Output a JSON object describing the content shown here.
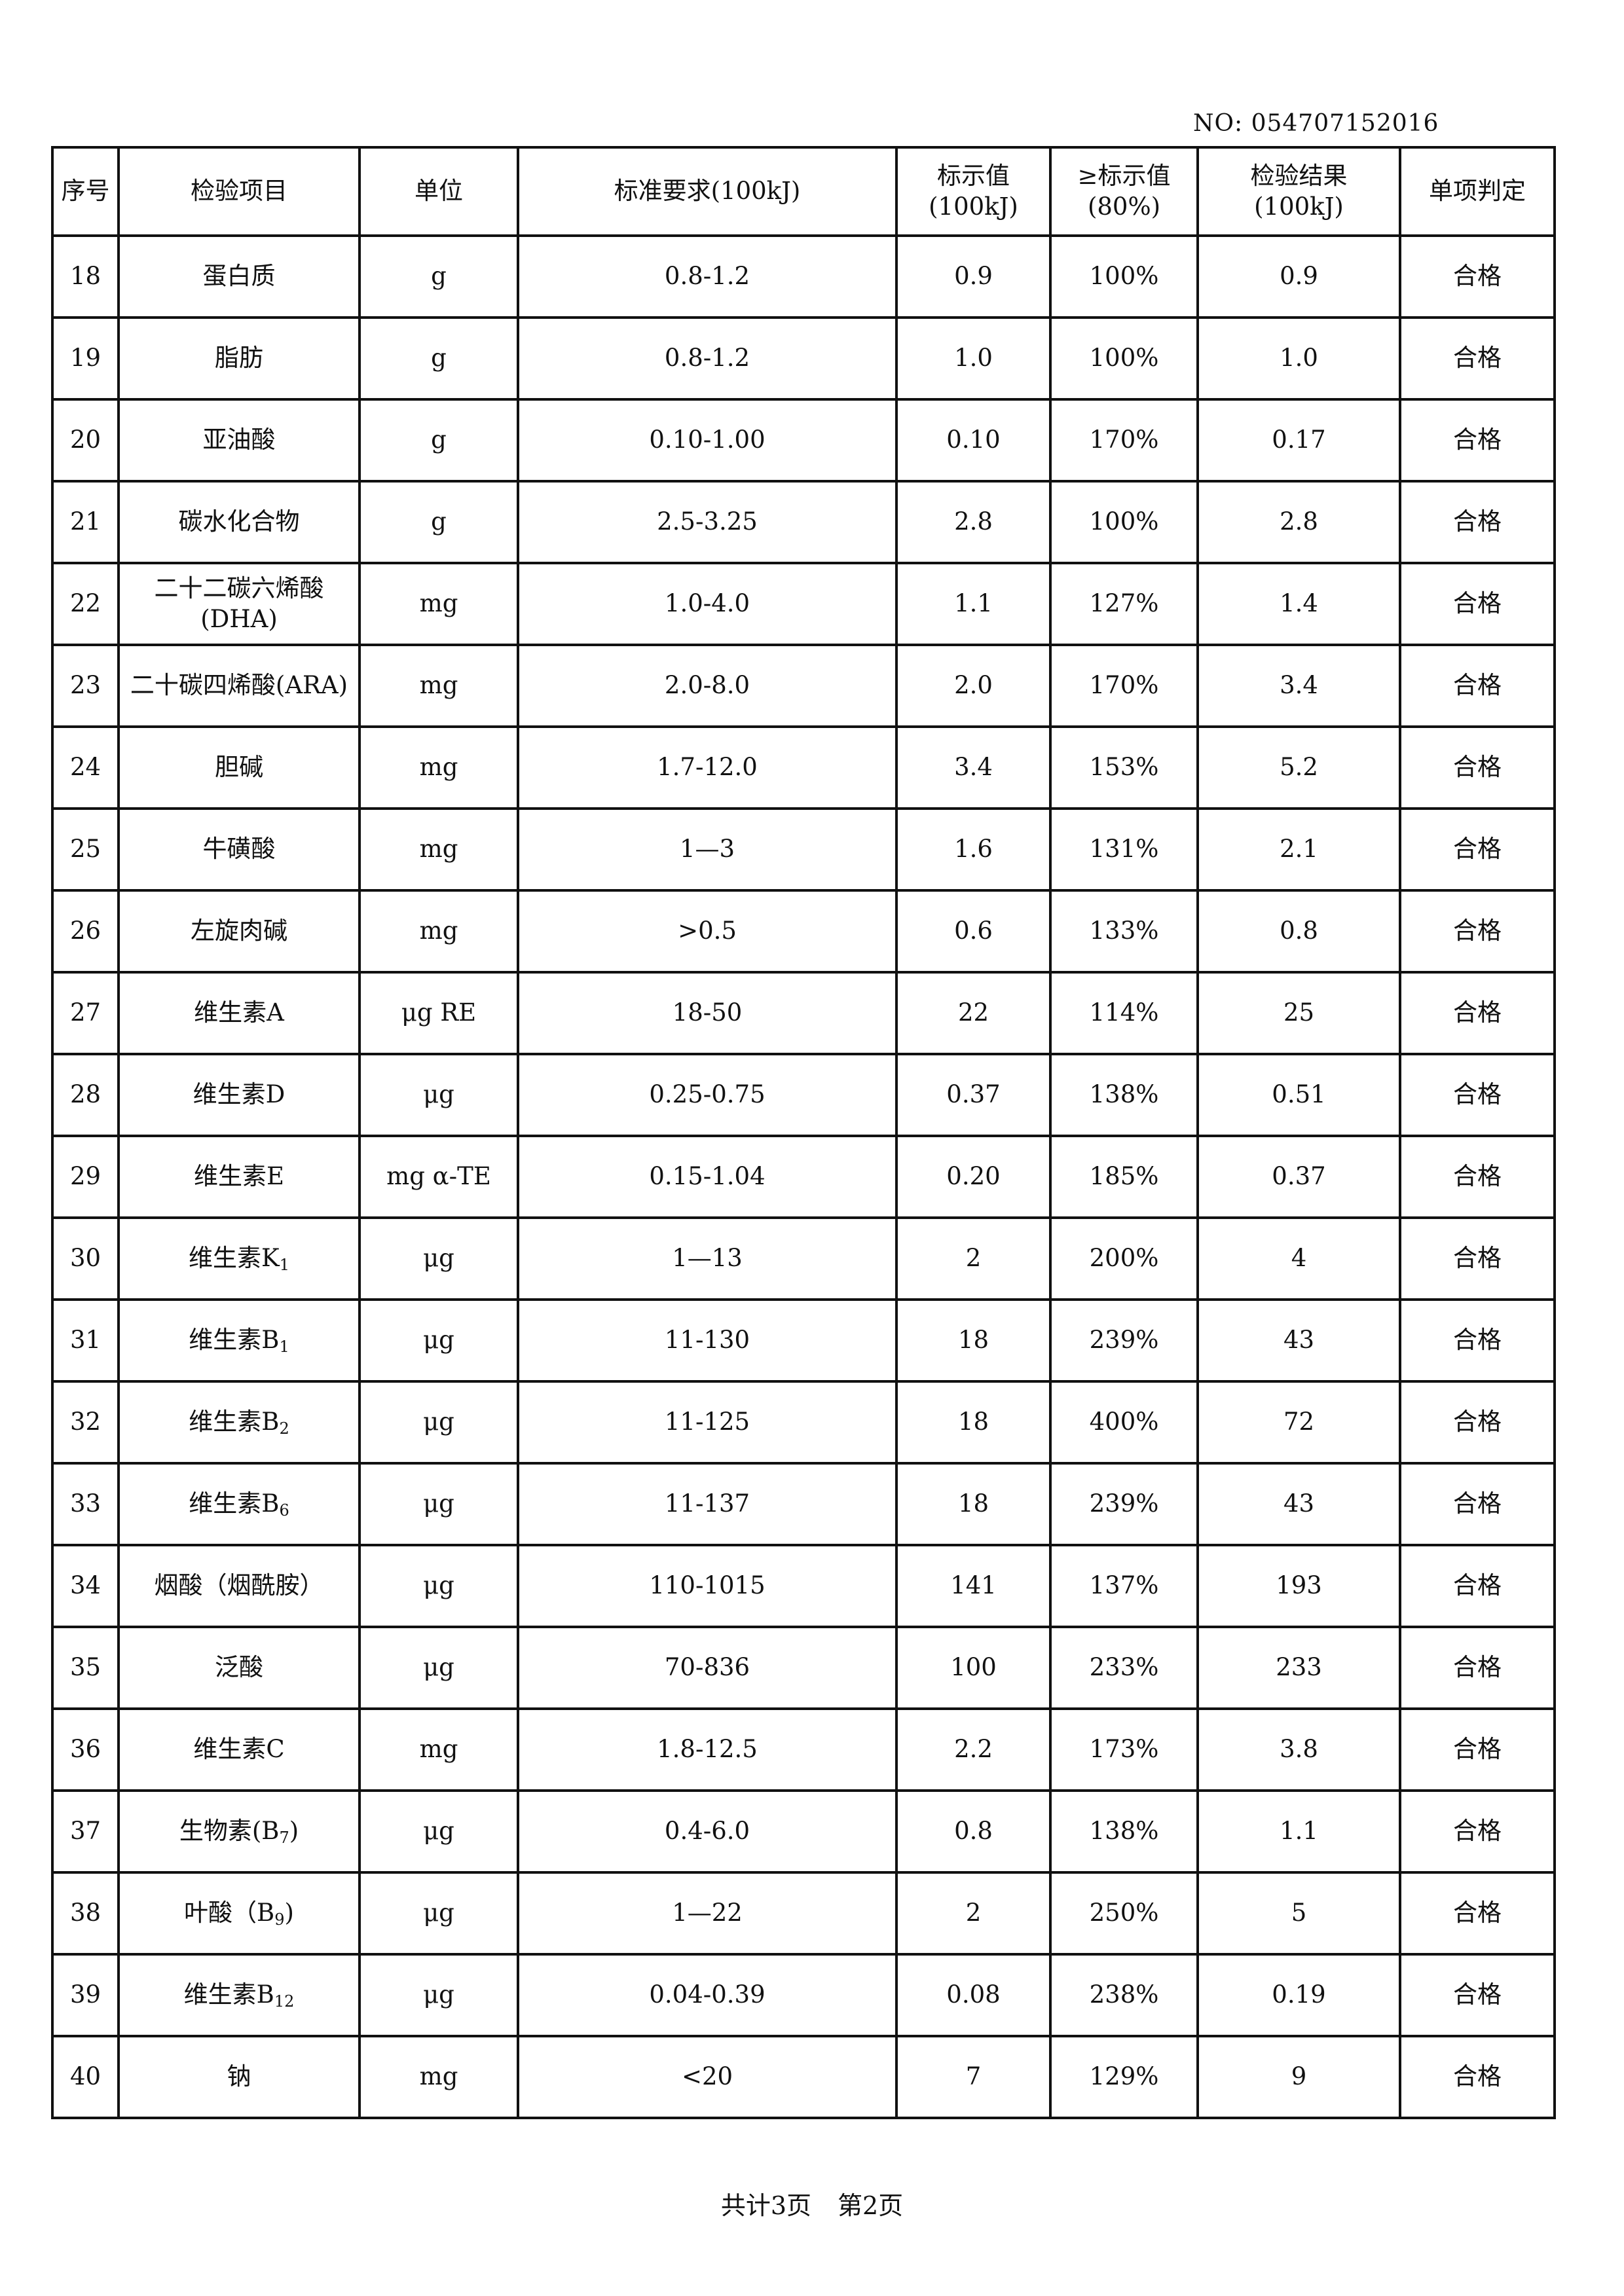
{
  "document_number": "NO: 054707152016",
  "table": {
    "headers": [
      {
        "line1": "序号",
        "line2": ""
      },
      {
        "line1": "检验项目",
        "line2": ""
      },
      {
        "line1": "单位",
        "line2": ""
      },
      {
        "line1": "标准要求(100kJ)",
        "line2": ""
      },
      {
        "line1": "标示值",
        "line2": "(100kJ)"
      },
      {
        "line1": "≥标示值",
        "line2": "(80%)"
      },
      {
        "line1": "检验结果",
        "line2": "(100kJ)"
      },
      {
        "line1": "单项判定",
        "line2": ""
      }
    ],
    "rows": [
      {
        "no": "18",
        "item": "蛋白质",
        "sub": "",
        "suffix": "",
        "unit": "g",
        "standard": "0.8-1.2",
        "label": "0.9",
        "pct": "100%",
        "result": "0.9",
        "verdict": "合格"
      },
      {
        "no": "19",
        "item": "脂肪",
        "sub": "",
        "suffix": "",
        "unit": "g",
        "standard": "0.8-1.2",
        "label": "1.0",
        "pct": "100%",
        "result": "1.0",
        "verdict": "合格"
      },
      {
        "no": "20",
        "item": "亚油酸",
        "sub": "",
        "suffix": "",
        "unit": "g",
        "standard": "0.10-1.00",
        "label": "0.10",
        "pct": "170%",
        "result": "0.17",
        "verdict": "合格"
      },
      {
        "no": "21",
        "item": "碳水化合物",
        "sub": "",
        "suffix": "",
        "unit": "g",
        "standard": "2.5-3.25",
        "label": "2.8",
        "pct": "100%",
        "result": "2.8",
        "verdict": "合格"
      },
      {
        "no": "22",
        "item": "二十二碳六烯酸",
        "sub": "",
        "suffix": "(DHA)",
        "unit": "mg",
        "standard": "1.0-4.0",
        "label": "1.1",
        "pct": "127%",
        "result": "1.4",
        "verdict": "合格"
      },
      {
        "no": "23",
        "item": "二十碳四烯酸(ARA)",
        "sub": "",
        "suffix": "",
        "unit": "mg",
        "standard": "2.0-8.0",
        "label": "2.0",
        "pct": "170%",
        "result": "3.4",
        "verdict": "合格"
      },
      {
        "no": "24",
        "item": "胆碱",
        "sub": "",
        "suffix": "",
        "unit": "mg",
        "standard": "1.7-12.0",
        "label": "3.4",
        "pct": "153%",
        "result": "5.2",
        "verdict": "合格"
      },
      {
        "no": "25",
        "item": "牛磺酸",
        "sub": "",
        "suffix": "",
        "unit": "mg",
        "standard": "1—3",
        "label": "1.6",
        "pct": "131%",
        "result": "2.1",
        "verdict": "合格"
      },
      {
        "no": "26",
        "item": "左旋肉碱",
        "sub": "",
        "suffix": "",
        "unit": "mg",
        "standard": ">0.5",
        "label": "0.6",
        "pct": "133%",
        "result": "0.8",
        "verdict": "合格"
      },
      {
        "no": "27",
        "item": "维生素A",
        "sub": "",
        "suffix": "",
        "unit": "μg RE",
        "standard": "18-50",
        "label": "22",
        "pct": "114%",
        "result": "25",
        "verdict": "合格"
      },
      {
        "no": "28",
        "item": "维生素D",
        "sub": "",
        "suffix": "",
        "unit": "μg",
        "standard": "0.25-0.75",
        "label": "0.37",
        "pct": "138%",
        "result": "0.51",
        "verdict": "合格"
      },
      {
        "no": "29",
        "item": "维生素E",
        "sub": "",
        "suffix": "",
        "unit": "mg α-TE",
        "standard": "0.15-1.04",
        "label": "0.20",
        "pct": "185%",
        "result": "0.37",
        "verdict": "合格"
      },
      {
        "no": "30",
        "item": "维生素K",
        "sub": "1",
        "suffix": "",
        "unit": "μg",
        "standard": "1—13",
        "label": "2",
        "pct": "200%",
        "result": "4",
        "verdict": "合格"
      },
      {
        "no": "31",
        "item": "维生素B",
        "sub": "1",
        "suffix": "",
        "unit": "μg",
        "standard": "11-130",
        "label": "18",
        "pct": "239%",
        "result": "43",
        "verdict": "合格"
      },
      {
        "no": "32",
        "item": "维生素B",
        "sub": "2",
        "suffix": "",
        "unit": "μg",
        "standard": "11-125",
        "label": "18",
        "pct": "400%",
        "result": "72",
        "verdict": "合格"
      },
      {
        "no": "33",
        "item": "维生素B",
        "sub": "6",
        "suffix": "",
        "unit": "μg",
        "standard": "11-137",
        "label": "18",
        "pct": "239%",
        "result": "43",
        "verdict": "合格"
      },
      {
        "no": "34",
        "item": "烟酸（烟酰胺）",
        "sub": "",
        "suffix": "",
        "unit": "μg",
        "standard": "110-1015",
        "label": "141",
        "pct": "137%",
        "result": "193",
        "verdict": "合格"
      },
      {
        "no": "35",
        "item": "泛酸",
        "sub": "",
        "suffix": "",
        "unit": "μg",
        "standard": "70-836",
        "label": "100",
        "pct": "233%",
        "result": "233",
        "verdict": "合格"
      },
      {
        "no": "36",
        "item": "维生素C",
        "sub": "",
        "suffix": "",
        "unit": "mg",
        "standard": "1.8-12.5",
        "label": "2.2",
        "pct": "173%",
        "result": "3.8",
        "verdict": "合格"
      },
      {
        "no": "37",
        "item": "生物素(B",
        "sub": "7",
        "suffix": ")",
        "unit": "μg",
        "standard": "0.4-6.0",
        "label": "0.8",
        "pct": "138%",
        "result": "1.1",
        "verdict": "合格"
      },
      {
        "no": "38",
        "item": "叶酸（B",
        "sub": "9",
        "suffix": ")",
        "unit": "μg",
        "standard": "1—22",
        "label": "2",
        "pct": "250%",
        "result": "5",
        "verdict": "合格"
      },
      {
        "no": "39",
        "item": "维生素B",
        "sub": "12",
        "suffix": "",
        "unit": "μg",
        "standard": "0.04-0.39",
        "label": "0.08",
        "pct": "238%",
        "result": "0.19",
        "verdict": "合格"
      },
      {
        "no": "40",
        "item": "钠",
        "sub": "",
        "suffix": "",
        "unit": "mg",
        "standard": "<20",
        "label": "7",
        "pct": "129%",
        "result": "9",
        "verdict": "合格"
      }
    ]
  },
  "footer": {
    "total_pages": "共计3页",
    "current_page": "第2页"
  }
}
